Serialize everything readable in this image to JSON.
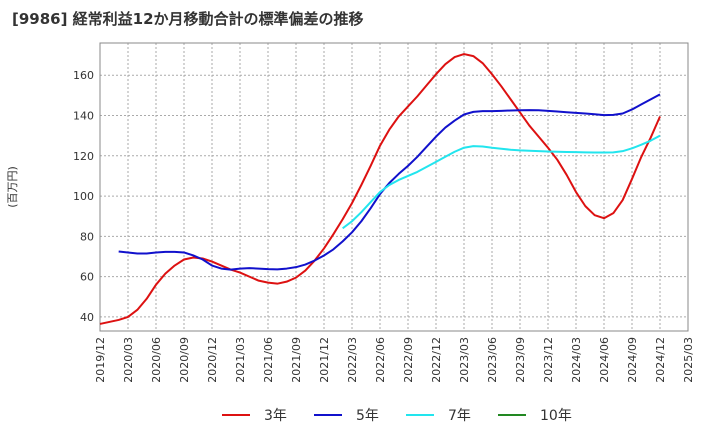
{
  "chart_data": {
    "type": "line",
    "title": "[9986]  経常利益12か月移動合計の標準偏差の推移",
    "ylabel": "(百万円)",
    "xlabel": "",
    "ylim": [
      33,
      176
    ],
    "yticks": [
      40,
      60,
      80,
      100,
      120,
      140,
      160
    ],
    "xticks": [
      "2019/12",
      "2020/03",
      "2020/06",
      "2020/09",
      "2020/12",
      "2021/03",
      "2021/06",
      "2021/09",
      "2021/12",
      "2022/03",
      "2022/06",
      "2022/09",
      "2022/12",
      "2023/03",
      "2023/06",
      "2023/09",
      "2023/12",
      "2024/03",
      "2024/06",
      "2024/09",
      "2024/12",
      "2025/03"
    ],
    "grid": true,
    "legend_position": "bottom",
    "series": [
      {
        "name": "3年",
        "color": "#dd1111",
        "points": [
          [
            "2019/12",
            36.5
          ],
          [
            "2020/01",
            37.5
          ],
          [
            "2020/02",
            38.5
          ],
          [
            "2020/03",
            40
          ],
          [
            "2020/04",
            43.5
          ],
          [
            "2020/05",
            49
          ],
          [
            "2020/06",
            56
          ],
          [
            "2020/07",
            61.5
          ],
          [
            "2020/08",
            65.5
          ],
          [
            "2020/09",
            68.5
          ],
          [
            "2020/10",
            69.5
          ],
          [
            "2020/11",
            69
          ],
          [
            "2020/12",
            67.5
          ],
          [
            "2021/01",
            65.5
          ],
          [
            "2021/02",
            63.5
          ],
          [
            "2021/03",
            62
          ],
          [
            "2021/04",
            60
          ],
          [
            "2021/05",
            58
          ],
          [
            "2021/06",
            57
          ],
          [
            "2021/07",
            56.5
          ],
          [
            "2021/08",
            57.5
          ],
          [
            "2021/09",
            59.5
          ],
          [
            "2021/10",
            63
          ],
          [
            "2021/11",
            68
          ],
          [
            "2021/12",
            74
          ],
          [
            "2022/01",
            81
          ],
          [
            "2022/02",
            88.5
          ],
          [
            "2022/03",
            96.5
          ],
          [
            "2022/04",
            105.5
          ],
          [
            "2022/05",
            115
          ],
          [
            "2022/06",
            125
          ],
          [
            "2022/07",
            133
          ],
          [
            "2022/08",
            139.5
          ],
          [
            "2022/09",
            144.5
          ],
          [
            "2022/10",
            149.5
          ],
          [
            "2022/11",
            155
          ],
          [
            "2022/12",
            160.5
          ],
          [
            "2023/01",
            165.5
          ],
          [
            "2023/02",
            169
          ],
          [
            "2023/03",
            170.5
          ],
          [
            "2023/04",
            169.5
          ],
          [
            "2023/05",
            166
          ],
          [
            "2023/06",
            160.5
          ],
          [
            "2023/07",
            154.5
          ],
          [
            "2023/08",
            148
          ],
          [
            "2023/09",
            141.5
          ],
          [
            "2023/10",
            135
          ],
          [
            "2023/11",
            129.5
          ],
          [
            "2023/12",
            124
          ],
          [
            "2024/01",
            118
          ],
          [
            "2024/02",
            110.5
          ],
          [
            "2024/03",
            102
          ],
          [
            "2024/04",
            95
          ],
          [
            "2024/05",
            90.5
          ],
          [
            "2024/06",
            89
          ],
          [
            "2024/07",
            91.5
          ],
          [
            "2024/08",
            98
          ],
          [
            "2024/09",
            108.5
          ],
          [
            "2024/10",
            119.5
          ],
          [
            "2024/11",
            129
          ],
          [
            "2024/12",
            139.5
          ]
        ]
      },
      {
        "name": "5年",
        "color": "#1111cc",
        "points": [
          [
            "2020/02",
            72.5
          ],
          [
            "2020/03",
            72
          ],
          [
            "2020/04",
            71.5
          ],
          [
            "2020/05",
            71.5
          ],
          [
            "2020/06",
            72
          ],
          [
            "2020/07",
            72.3
          ],
          [
            "2020/08",
            72.3
          ],
          [
            "2020/09",
            72
          ],
          [
            "2020/10",
            70.5
          ],
          [
            "2020/11",
            68.5
          ],
          [
            "2020/12",
            65.5
          ],
          [
            "2021/01",
            64
          ],
          [
            "2021/02",
            63.5
          ],
          [
            "2021/03",
            64
          ],
          [
            "2021/04",
            64.2
          ],
          [
            "2021/05",
            64
          ],
          [
            "2021/06",
            63.7
          ],
          [
            "2021/07",
            63.6
          ],
          [
            "2021/08",
            64
          ],
          [
            "2021/09",
            64.7
          ],
          [
            "2021/10",
            66
          ],
          [
            "2021/11",
            68
          ],
          [
            "2021/12",
            70.5
          ],
          [
            "2022/01",
            73.5
          ],
          [
            "2022/02",
            77.5
          ],
          [
            "2022/03",
            82
          ],
          [
            "2022/04",
            87.5
          ],
          [
            "2022/05",
            94
          ],
          [
            "2022/06",
            101
          ],
          [
            "2022/07",
            106.5
          ],
          [
            "2022/08",
            111
          ],
          [
            "2022/09",
            115
          ],
          [
            "2022/10",
            119.5
          ],
          [
            "2022/11",
            124.5
          ],
          [
            "2022/12",
            129.5
          ],
          [
            "2023/01",
            134
          ],
          [
            "2023/02",
            137.5
          ],
          [
            "2023/03",
            140.5
          ],
          [
            "2023/04",
            141.8
          ],
          [
            "2023/05",
            142.2
          ],
          [
            "2023/06",
            142.2
          ],
          [
            "2023/07",
            142.3
          ],
          [
            "2023/08",
            142.5
          ],
          [
            "2023/09",
            142.6
          ],
          [
            "2023/10",
            142.7
          ],
          [
            "2023/11",
            142.6
          ],
          [
            "2023/12",
            142.3
          ],
          [
            "2024/01",
            142
          ],
          [
            "2024/02",
            141.6
          ],
          [
            "2024/03",
            141.3
          ],
          [
            "2024/04",
            141
          ],
          [
            "2024/05",
            140.6
          ],
          [
            "2024/06",
            140.2
          ],
          [
            "2024/07",
            140.3
          ],
          [
            "2024/08",
            141
          ],
          [
            "2024/09",
            143
          ],
          [
            "2024/10",
            145.5
          ],
          [
            "2024/11",
            148
          ],
          [
            "2024/12",
            150.5
          ]
        ]
      },
      {
        "name": "7年",
        "color": "#22e5ee",
        "points": [
          [
            "2022/02",
            84
          ],
          [
            "2022/03",
            87.5
          ],
          [
            "2022/04",
            92
          ],
          [
            "2022/05",
            97
          ],
          [
            "2022/06",
            102
          ],
          [
            "2022/07",
            105.5
          ],
          [
            "2022/08",
            108
          ],
          [
            "2022/09",
            110
          ],
          [
            "2022/10",
            112
          ],
          [
            "2022/11",
            114.5
          ],
          [
            "2022/12",
            117
          ],
          [
            "2023/01",
            119.5
          ],
          [
            "2023/02",
            122
          ],
          [
            "2023/03",
            124
          ],
          [
            "2023/04",
            124.8
          ],
          [
            "2023/05",
            124.6
          ],
          [
            "2023/06",
            124
          ],
          [
            "2023/07",
            123.5
          ],
          [
            "2023/08",
            123
          ],
          [
            "2023/09",
            122.7
          ],
          [
            "2023/10",
            122.5
          ],
          [
            "2023/11",
            122.3
          ],
          [
            "2023/12",
            122.1
          ],
          [
            "2024/01",
            122
          ],
          [
            "2024/02",
            121.9
          ],
          [
            "2024/03",
            121.8
          ],
          [
            "2024/04",
            121.7
          ],
          [
            "2024/05",
            121.6
          ],
          [
            "2024/06",
            121.6
          ],
          [
            "2024/07",
            121.7
          ],
          [
            "2024/08",
            122.3
          ],
          [
            "2024/09",
            123.7
          ],
          [
            "2024/10",
            125.5
          ],
          [
            "2024/11",
            127.5
          ],
          [
            "2024/12",
            130
          ]
        ]
      },
      {
        "name": "10年",
        "color": "#228822",
        "points": []
      }
    ]
  }
}
